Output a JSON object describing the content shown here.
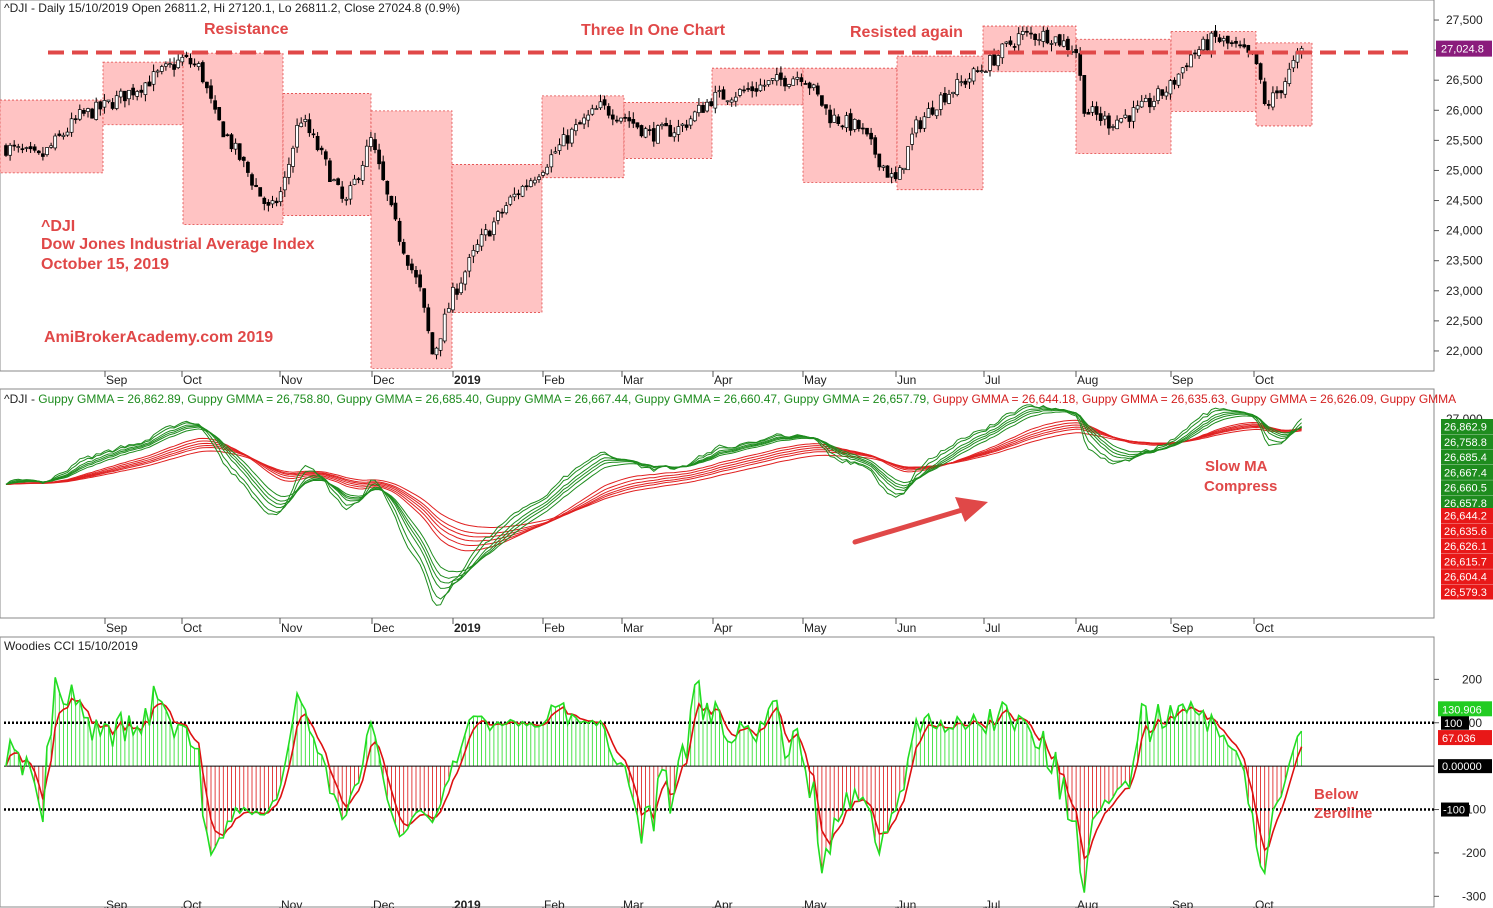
{
  "header": {
    "price_title": "^DJI - Daily 15/10/2019 Open 26811.2, Hi 27120.1, Lo 26811.2, Close 27024.8 (0.9%)",
    "gmma_title": [
      "^DJI - ",
      "Guppy GMMA = 26,862.89, ",
      "Guppy GMMA = 26,758.80, ",
      "Guppy GMMA = 26,685.40, ",
      "Guppy GMMA = 26,667.44, ",
      "Guppy GMMA = 26,660.47, ",
      "Guppy GMMA = 26,657.79, ",
      "Guppy GMMA = 26,644.18, ",
      "Guppy GMMA = 26,635.63, ",
      "Guppy GMMA = 26,626.09, ",
      "Guppy GMMA"
    ],
    "cci_title": "Woodies CCI   15/10/2019"
  },
  "annotations": {
    "resistance": "Resistance",
    "three_in_one": "Three In One Chart",
    "resisted_again": "Resisted again",
    "dji_line1": "^DJI",
    "dji_line2": "Dow Jones Industrial Average Index",
    "dji_line3": "October 15, 2019",
    "site": "AmiBrokerAcademy.com   2019",
    "slow_ma_1": "Slow MA",
    "slow_ma_2": "Compress",
    "below_1": "Below",
    "below_2": "Zeroline"
  },
  "colors": {
    "accent": "#e04848",
    "box_fill": "#ffb8b8",
    "fast_ma": "#1e8c1e",
    "slow_ma": "#e02020",
    "cci_green": "#22dd22",
    "cci_red": "#dd1111",
    "price_tag": "#8a1c7c"
  },
  "chart_data": [
    {
      "type": "candlestick",
      "title": "^DJI - Daily",
      "ylim": [
        21700,
        27700
      ],
      "y_ticks": [
        "22,000",
        "22,500",
        "23,000",
        "23,500",
        "24,000",
        "24,500",
        "25,000",
        "25,500",
        "26,000",
        "26,500",
        "27,000",
        "27,500"
      ],
      "x_ticks": [
        "Sep",
        "Oct",
        "Nov",
        "Dec",
        "2019",
        "Feb",
        "Mar",
        "Apr",
        "May",
        "Jun",
        "Jul",
        "Aug",
        "Sep",
        "Oct"
      ],
      "last_close": 27024.8,
      "last_close_label": "27,024.8",
      "resistance_level": 26960,
      "monthly_ranges": [
        {
          "month": "Aug 2018",
          "low": 24960,
          "high": 26170
        },
        {
          "month": "Sep 2018",
          "low": 25760,
          "high": 26800
        },
        {
          "month": "Oct 2018",
          "low": 24100,
          "high": 26950
        },
        {
          "month": "Nov 2018",
          "low": 24250,
          "high": 26280
        },
        {
          "month": "Dec 2018",
          "low": 21710,
          "high": 25990
        },
        {
          "month": "Jan 2019",
          "low": 22640,
          "high": 25100
        },
        {
          "month": "Feb 2019",
          "low": 24880,
          "high": 26240
        },
        {
          "month": "Mar 2019",
          "low": 25200,
          "high": 26130
        },
        {
          "month": "Apr 2019",
          "low": 26090,
          "high": 26700
        },
        {
          "month": "May 2019",
          "low": 24800,
          "high": 26700
        },
        {
          "month": "Jun 2019",
          "low": 24680,
          "high": 26900
        },
        {
          "month": "Jul 2019",
          "low": 26640,
          "high": 27400
        },
        {
          "month": "Aug 2019",
          "low": 25280,
          "high": 27180
        },
        {
          "month": "Sep 2019",
          "low": 25980,
          "high": 27310
        },
        {
          "month": "Oct 2019",
          "low": 25740,
          "high": 27120
        }
      ]
    },
    {
      "type": "line",
      "title": "Guppy GMMA",
      "fast_values": [
        "26,862.9",
        "26,758.8",
        "26,685.4",
        "26,667.4",
        "26,660.5",
        "26,657.8"
      ],
      "slow_values": [
        "26,644.2",
        "26,635.6",
        "26,626.1",
        "26,615.7",
        "26,604.4",
        "26,579.3"
      ],
      "y_tick_top": "27,000",
      "x_ticks": [
        "Sep",
        "Oct",
        "Nov",
        "Dec",
        "2019",
        "Feb",
        "Mar",
        "Apr",
        "May",
        "Jun",
        "Jul",
        "Aug",
        "Sep",
        "Oct"
      ]
    },
    {
      "type": "line",
      "title": "Woodies CCI",
      "ylim": [
        -320,
        240
      ],
      "y_ticks": [
        "200",
        "100",
        "-100",
        "-200",
        "-300"
      ],
      "levels": [
        100,
        0,
        -100
      ],
      "level_labels": [
        "100",
        "0.00000",
        "-100"
      ],
      "cci_last_label": "130.906",
      "turbo_last_label": "67.036",
      "x_ticks": [
        "Sep",
        "Oct",
        "Nov",
        "Dec",
        "2019",
        "Feb",
        "Mar",
        "Apr",
        "May",
        "Jun",
        "Jul",
        "Aug",
        "Sep",
        "Oct"
      ]
    }
  ]
}
